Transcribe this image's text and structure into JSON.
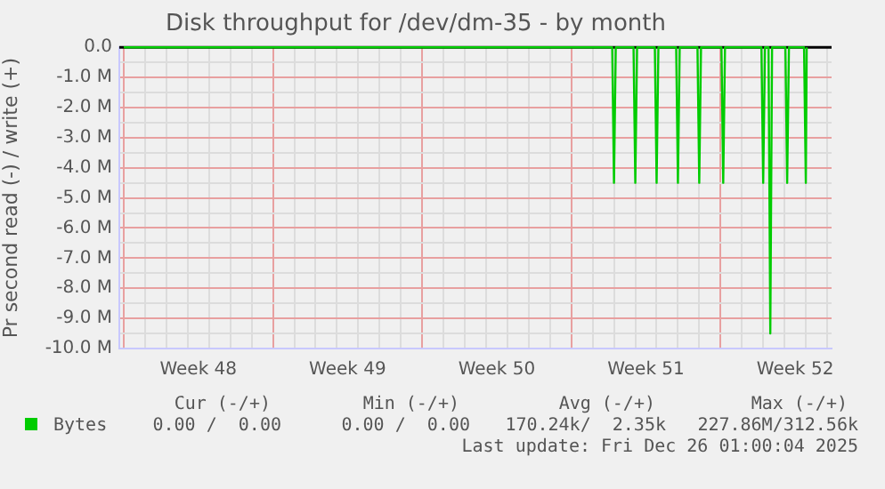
{
  "chart_data": {
    "type": "line",
    "title": "Disk throughput for /dev/dm-35 - by month",
    "ylabel": "Pr second read (-) / write (+)",
    "x": [
      "2025-11-24T00:00",
      "2025-12-16T22:00",
      "2025-12-17T00:00",
      "2025-12-17T02:00",
      "2025-12-17T22:00",
      "2025-12-18T00:00",
      "2025-12-18T02:00",
      "2025-12-18T22:00",
      "2025-12-19T00:00",
      "2025-12-19T02:00",
      "2025-12-19T22:00",
      "2025-12-20T00:00",
      "2025-12-20T02:00",
      "2025-12-20T22:00",
      "2025-12-21T00:00",
      "2025-12-21T02:00",
      "2025-12-22T01:00",
      "2025-12-22T03:00",
      "2025-12-22T05:00",
      "2025-12-23T22:00",
      "2025-12-24T00:00",
      "2025-12-24T02:00",
      "2025-12-24T06:00",
      "2025-12-24T08:00",
      "2025-12-24T10:00",
      "2025-12-25T01:00",
      "2025-12-25T03:00",
      "2025-12-25T05:00",
      "2025-12-25T22:00",
      "2025-12-26T00:00",
      "2025-12-26T01:00"
    ],
    "series": [
      {
        "name": "Bytes",
        "color": "#00cc00",
        "values": [
          0,
          0,
          -4.5,
          0,
          0,
          -4.5,
          0,
          0,
          -4.5,
          0,
          0,
          -4.5,
          0,
          0,
          -4.5,
          0,
          0,
          -4.5,
          0,
          0,
          -4.5,
          0,
          0,
          -9.5,
          0,
          0,
          -4.5,
          0,
          0,
          -4.5,
          0
        ]
      }
    ],
    "xlim": [
      "2025-11-23T19:00",
      "2025-12-27T05:00"
    ],
    "xticks": [
      {
        "value": "2025-11-24",
        "label": null
      },
      {
        "value": "2025-11-25",
        "label": null
      },
      {
        "value": "2025-11-26",
        "label": null
      },
      {
        "value": "2025-11-27",
        "label": null
      },
      {
        "value": "2025-11-27T12:00",
        "label": "Week 48"
      },
      {
        "value": "2025-11-28",
        "label": null
      },
      {
        "value": "2025-11-29",
        "label": null
      },
      {
        "value": "2025-11-30",
        "label": null
      },
      {
        "value": "2025-12-01",
        "label": null
      },
      {
        "value": "2025-12-02",
        "label": null
      },
      {
        "value": "2025-12-03",
        "label": null
      },
      {
        "value": "2025-12-04",
        "label": null
      },
      {
        "value": "2025-12-04T12:00",
        "label": "Week 49"
      },
      {
        "value": "2025-12-05",
        "label": null
      },
      {
        "value": "2025-12-06",
        "label": null
      },
      {
        "value": "2025-12-07",
        "label": null
      },
      {
        "value": "2025-12-08",
        "label": null
      },
      {
        "value": "2025-12-09",
        "label": null
      },
      {
        "value": "2025-12-10",
        "label": null
      },
      {
        "value": "2025-12-11",
        "label": null
      },
      {
        "value": "2025-12-11T12:00",
        "label": "Week 50"
      },
      {
        "value": "2025-12-12",
        "label": null
      },
      {
        "value": "2025-12-13",
        "label": null
      },
      {
        "value": "2025-12-14",
        "label": null
      },
      {
        "value": "2025-12-15",
        "label": null
      },
      {
        "value": "2025-12-16",
        "label": null
      },
      {
        "value": "2025-12-17",
        "label": null
      },
      {
        "value": "2025-12-18",
        "label": null
      },
      {
        "value": "2025-12-18T12:00",
        "label": "Week 51"
      },
      {
        "value": "2025-12-19",
        "label": null
      },
      {
        "value": "2025-12-20",
        "label": null
      },
      {
        "value": "2025-12-21",
        "label": null
      },
      {
        "value": "2025-12-22",
        "label": null
      },
      {
        "value": "2025-12-23",
        "label": null
      },
      {
        "value": "2025-12-24",
        "label": null
      },
      {
        "value": "2025-12-25",
        "label": null
      },
      {
        "value": "2025-12-25T12:00",
        "label": "Week 52"
      },
      {
        "value": "2025-12-26",
        "label": null
      },
      {
        "value": "2025-12-27",
        "label": null
      }
    ],
    "ylim": [
      -10,
      0
    ],
    "yticks": [
      {
        "value": 0,
        "label": "0.0"
      },
      {
        "value": -0.5,
        "label": null
      },
      {
        "value": -1,
        "label": "-1.0 M"
      },
      {
        "value": -1.5,
        "label": null
      },
      {
        "value": -2,
        "label": "-2.0 M"
      },
      {
        "value": -2.5,
        "label": null
      },
      {
        "value": -3,
        "label": "-3.0 M"
      },
      {
        "value": -3.5,
        "label": null
      },
      {
        "value": -4,
        "label": "-4.0 M"
      },
      {
        "value": -4.5,
        "label": null
      },
      {
        "value": -5,
        "label": "-5.0 M"
      },
      {
        "value": -5.5,
        "label": null
      },
      {
        "value": -6,
        "label": "-6.0 M"
      },
      {
        "value": -6.5,
        "label": null
      },
      {
        "value": -7,
        "label": "-7.0 M"
      },
      {
        "value": -7.5,
        "label": null
      },
      {
        "value": -8,
        "label": "-8.0 M"
      },
      {
        "value": -8.5,
        "label": null
      },
      {
        "value": -9,
        "label": "-9.0 M"
      },
      {
        "value": -9.5,
        "label": null
      },
      {
        "value": -10,
        "label": "-10.0 M"
      }
    ],
    "ref_lines": [
      {
        "axis": "y",
        "value": 0,
        "color": "#000000"
      }
    ],
    "grid": true,
    "legend": "bottom left",
    "marker": "none",
    "line_style": "solid",
    "annotations": [
      "Cur (-/+)",
      "Min (-/+)",
      "Avg (-/+)",
      "Max (-/+)",
      "0.00 /  0.00",
      "0.00 /  0.00",
      "170.24k/  2.35k",
      "227.86M/312.56k",
      "Last update: Fri Dec 26 01:00:04 2025"
    ]
  }
}
